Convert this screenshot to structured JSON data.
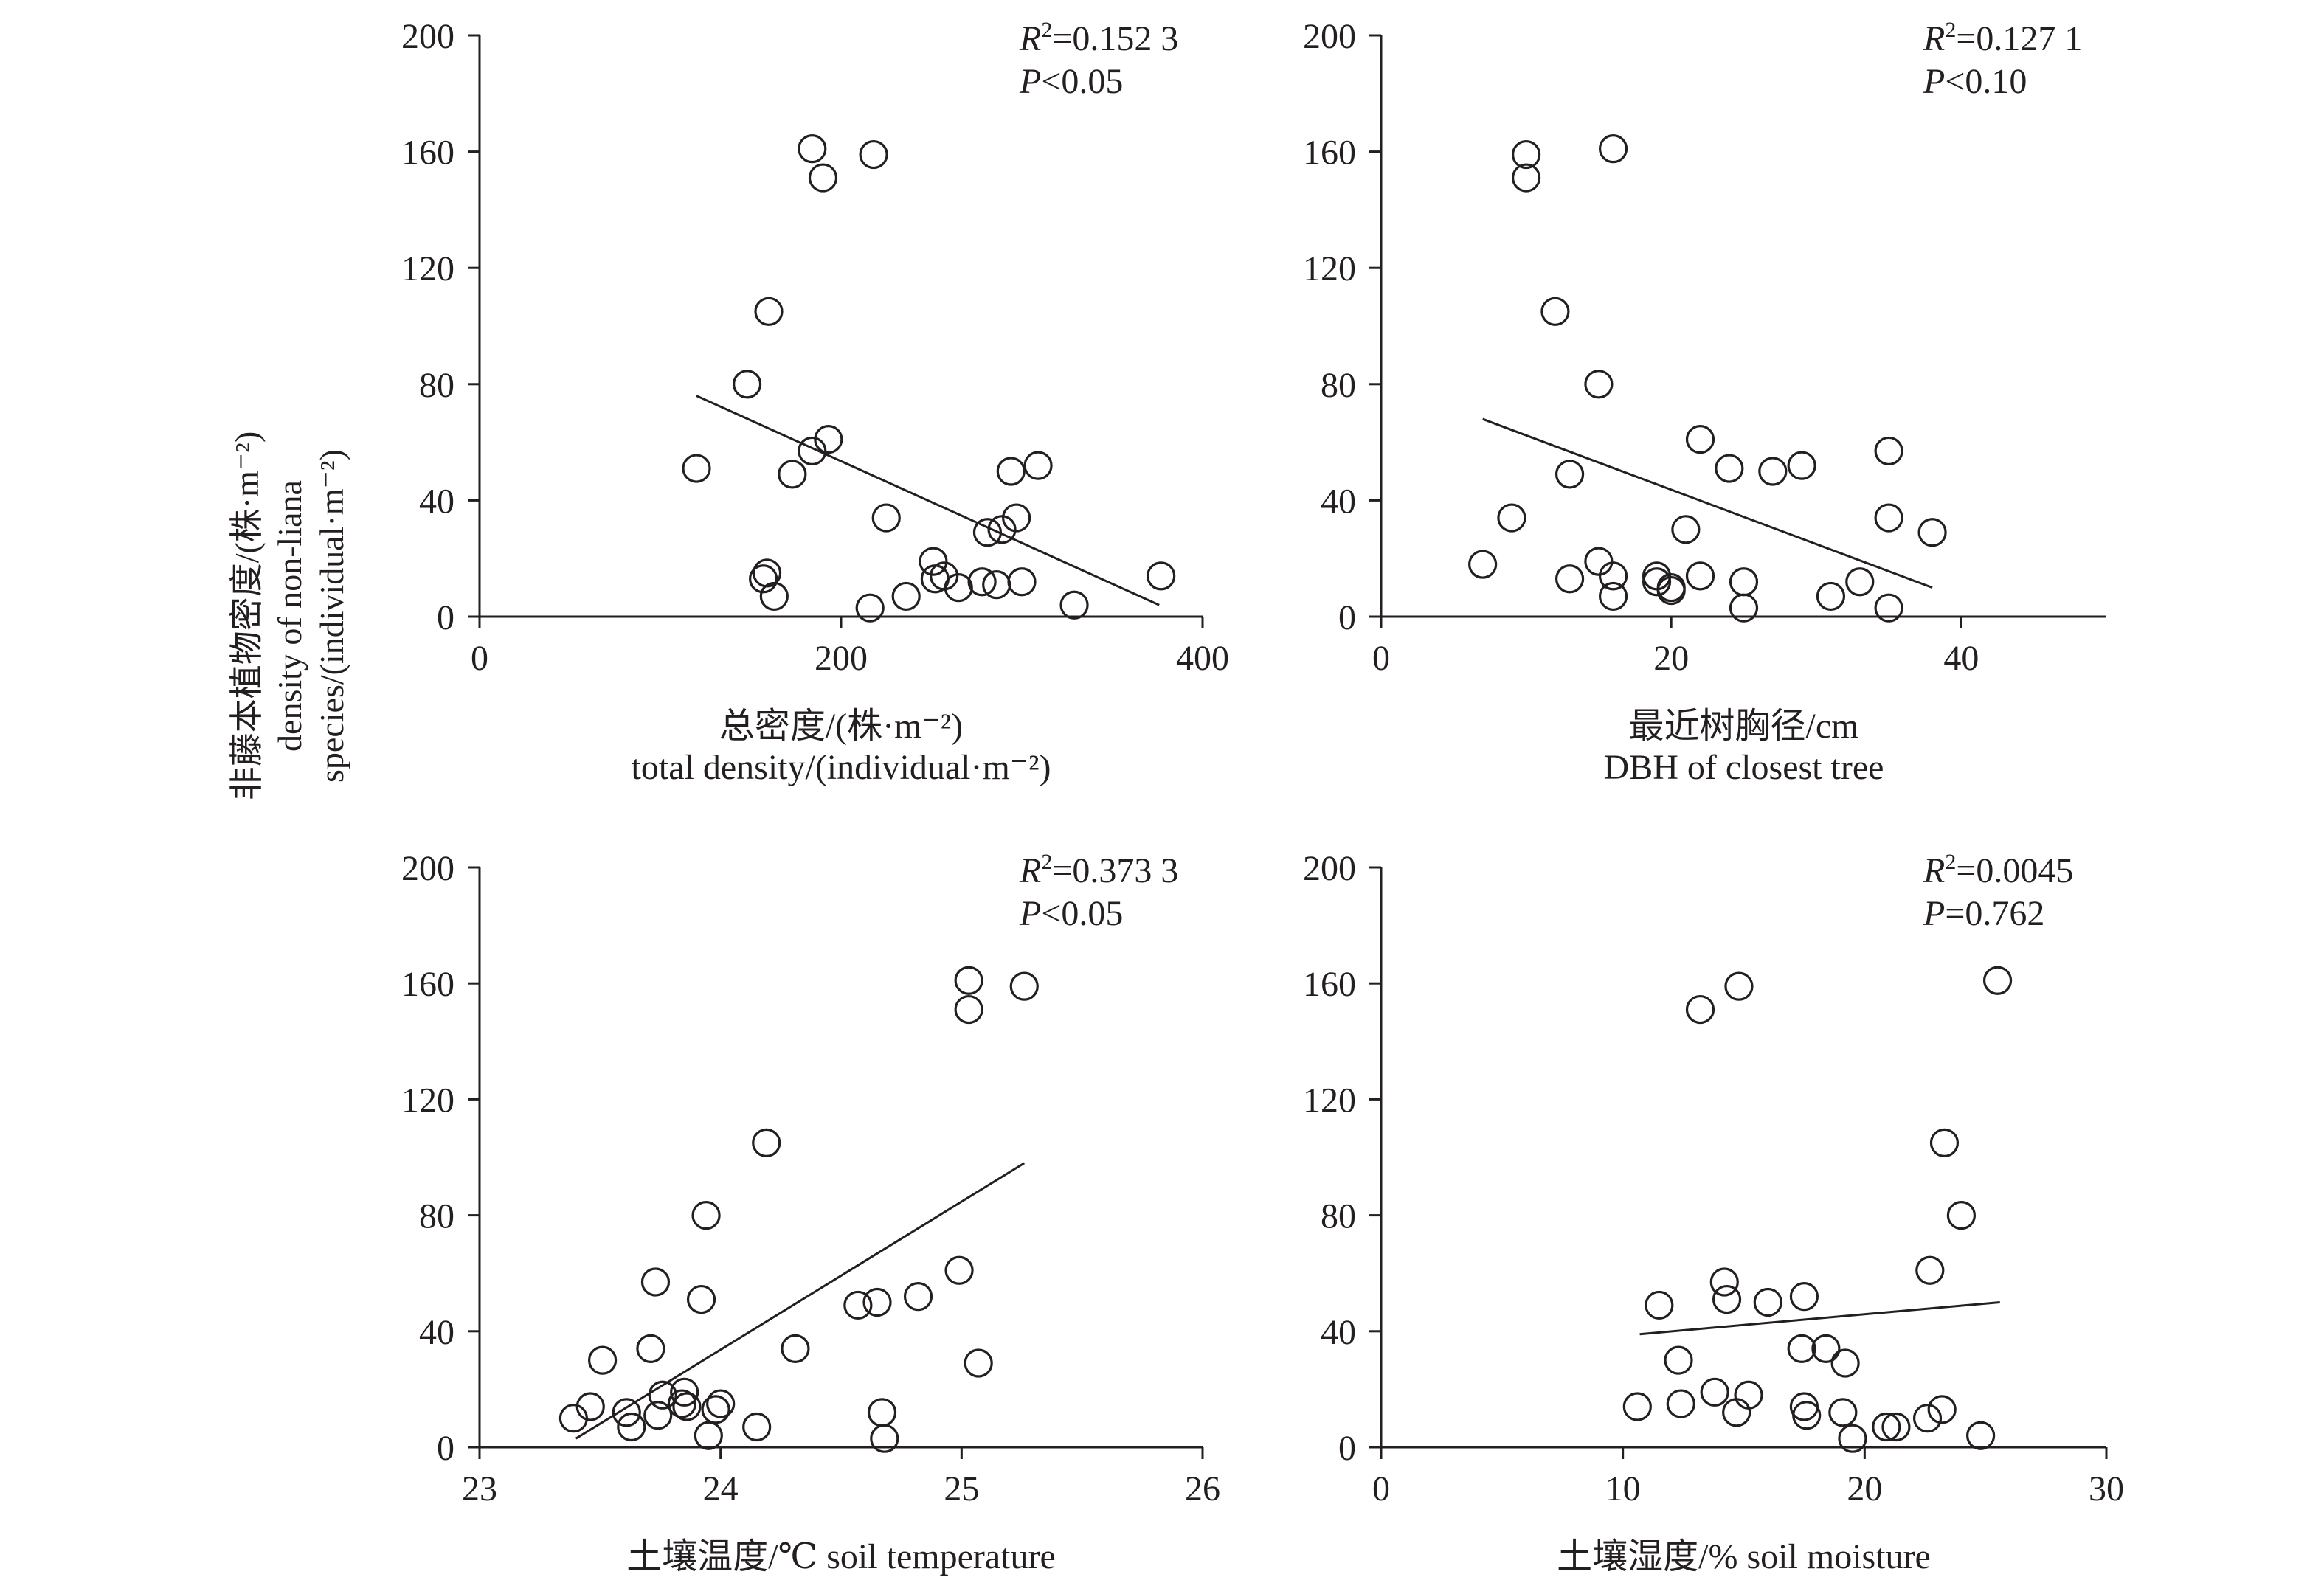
{
  "figure": {
    "y_label_cn": "非藤本植物密度/(株·m⁻²)",
    "y_label_en1": "density of non-liana",
    "y_label_en2": "species/(individual·m⁻²)"
  },
  "chart_data": [
    {
      "type": "scatter",
      "title": "",
      "xlabel_cn": "总密度/(株·m⁻²)",
      "xlabel_en": "total density/(individual·m⁻²)",
      "xlim": [
        0,
        400
      ],
      "ylim": [
        0,
        200
      ],
      "x_ticks": [
        0,
        200,
        400
      ],
      "y_ticks": [
        0,
        40,
        80,
        120,
        160,
        200
      ],
      "r2_prefix": "R",
      "r2_text": "=0.152 3",
      "p_prefix": "P",
      "p_text": "<0.05",
      "trend": {
        "x": [
          120,
          376
        ],
        "y": [
          76,
          4
        ]
      },
      "points": {
        "x": [
          184,
          218,
          190,
          160,
          148,
          120,
          184,
          193,
          173,
          225,
          159,
          157,
          163,
          216,
          236,
          251,
          252,
          257,
          265,
          278,
          281,
          286,
          289,
          294,
          297,
          300,
          309,
          329,
          377
        ],
        "y": [
          161,
          159,
          151,
          105,
          80,
          51,
          57,
          61,
          49,
          34,
          15,
          13,
          7,
          3,
          7,
          19,
          13,
          14,
          10,
          12,
          29,
          11,
          30,
          50,
          34,
          12,
          52,
          4,
          14
        ]
      }
    },
    {
      "type": "scatter",
      "title": "",
      "xlabel_cn": "最近树胸径/cm",
      "xlabel_en": "DBH of closest tree",
      "xlim": [
        0,
        50
      ],
      "ylim": [
        0,
        200
      ],
      "x_ticks": [
        0,
        20,
        40
      ],
      "y_ticks": [
        0,
        40,
        80,
        120,
        160,
        200
      ],
      "r2_prefix": "R",
      "r2_text": "=0.127 1",
      "p_prefix": "P",
      "p_text": "<0.10",
      "trend": {
        "x": [
          7,
          38
        ],
        "y": [
          68,
          10
        ]
      },
      "points": {
        "x": [
          10,
          10,
          16,
          12,
          15,
          13,
          9,
          7,
          13,
          15,
          16,
          16,
          19,
          19,
          20,
          20,
          21,
          22,
          22,
          24,
          25,
          25,
          27,
          29,
          31,
          33,
          35,
          35,
          35,
          38
        ],
        "y": [
          159,
          151,
          161,
          105,
          80,
          49,
          34,
          18,
          13,
          19,
          14,
          7,
          14,
          12,
          10,
          9,
          30,
          14,
          61,
          51,
          12,
          3,
          50,
          52,
          7,
          12,
          57,
          34,
          3,
          29
        ]
      }
    },
    {
      "type": "scatter",
      "title": "",
      "xlabel_cn": "土壤温度/℃",
      "xlabel_en": "soil temperature",
      "xlim": [
        23,
        26
      ],
      "ylim": [
        0,
        200
      ],
      "x_ticks": [
        23,
        24,
        25,
        26
      ],
      "y_ticks": [
        0,
        40,
        80,
        120,
        160,
        200
      ],
      "r2_prefix": "R",
      "r2_text": "=0.373 3",
      "p_prefix": "P",
      "p_text": "<0.05",
      "trend": {
        "x": [
          23.4,
          25.26
        ],
        "y": [
          3,
          98
        ]
      },
      "points": {
        "x": [
          23.39,
          23.46,
          23.51,
          23.61,
          23.63,
          23.71,
          23.73,
          23.74,
          23.76,
          23.85,
          23.86,
          23.84,
          23.92,
          23.94,
          23.95,
          23.98,
          24.0,
          24.15,
          24.19,
          24.31,
          24.57,
          24.65,
          24.67,
          24.68,
          24.82,
          24.99,
          25.03,
          25.03,
          25.07,
          25.26
        ],
        "y": [
          10,
          14,
          30,
          12,
          7,
          34,
          57,
          11,
          18,
          19,
          14,
          15,
          51,
          80,
          4,
          13,
          15,
          7,
          105,
          34,
          49,
          50,
          12,
          3,
          52,
          61,
          161,
          151,
          29,
          159
        ]
      }
    },
    {
      "type": "scatter",
      "title": "",
      "xlabel_cn": "土壤湿度/%",
      "xlabel_en": "soil moisture",
      "xlim": [
        0,
        30
      ],
      "ylim": [
        0,
        200
      ],
      "x_ticks": [
        0,
        10,
        20,
        30
      ],
      "y_ticks": [
        0,
        40,
        80,
        120,
        160,
        200
      ],
      "r2_prefix": "R",
      "r2_text": "=0.0045",
      "p_prefix": "P",
      "p_text": "=0.762",
      "trend": {
        "x": [
          10.7,
          25.6
        ],
        "y": [
          39,
          50
        ]
      },
      "points": {
        "x": [
          13.2,
          14.8,
          25.5,
          23.3,
          24.0,
          22.7,
          14.2,
          11.5,
          14.3,
          16.0,
          17.5,
          17.4,
          18.4,
          19.2,
          12.3,
          10.6,
          12.4,
          13.8,
          14.7,
          15.2,
          17.5,
          17.6,
          19.5,
          19.1,
          20.9,
          21.3,
          22.6,
          23.2,
          24.8
        ],
        "y": [
          151,
          159,
          161,
          105,
          80,
          61,
          57,
          49,
          51,
          50,
          52,
          34,
          34,
          29,
          30,
          14,
          15,
          19,
          12,
          18,
          14,
          11,
          3,
          12,
          7,
          7,
          10,
          13,
          4
        ]
      }
    }
  ]
}
